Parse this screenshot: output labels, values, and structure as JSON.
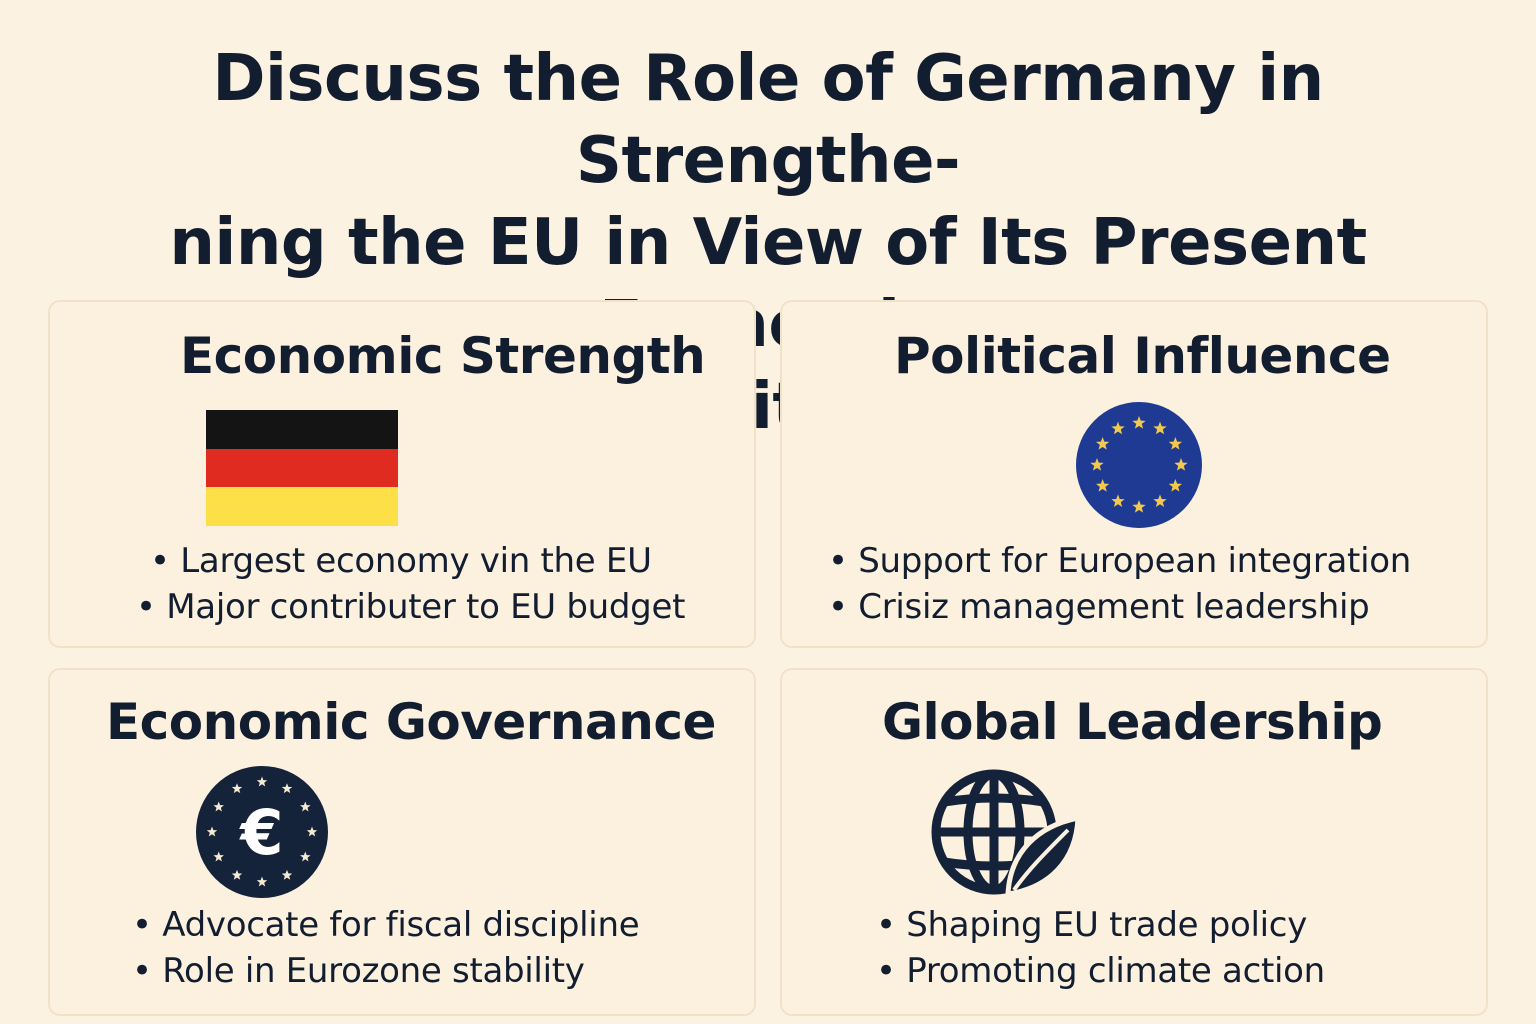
{
  "title": {
    "line1": "Discuss the Role of Germany in Strengthe-",
    "line2": "ning the EU in View of Its Present Economic",
    "line3": "Position"
  },
  "cards": [
    {
      "heading": "Economic Strength",
      "icon": "germany-flag-icon",
      "bullets": [
        "Largest economy vin the EU",
        "Major contributer to EU budget"
      ]
    },
    {
      "heading": "Political Influence",
      "icon": "eu-flag-icon",
      "bullets": [
        "Support for European integration",
        "Crisiz management leadership"
      ]
    },
    {
      "heading": "Economic Governance",
      "icon": "euro-icon",
      "bullets": [
        "Advocate for fiscal discipline",
        "Role in Eurozone stability"
      ]
    },
    {
      "heading": "Global Leadership",
      "icon": "globe-leaf-icon",
      "bullets": [
        "Shaping EU trade policy",
        "Promoting climate action"
      ]
    }
  ],
  "colors": {
    "background": "#fcf2e1",
    "text": "#121e30",
    "flag_black": "#141414",
    "flag_red": "#e02b20",
    "flag_gold": "#fde047",
    "eu_blue": "#1f3a93",
    "eu_star": "#f2c94c",
    "euro_navy": "#14233a"
  }
}
